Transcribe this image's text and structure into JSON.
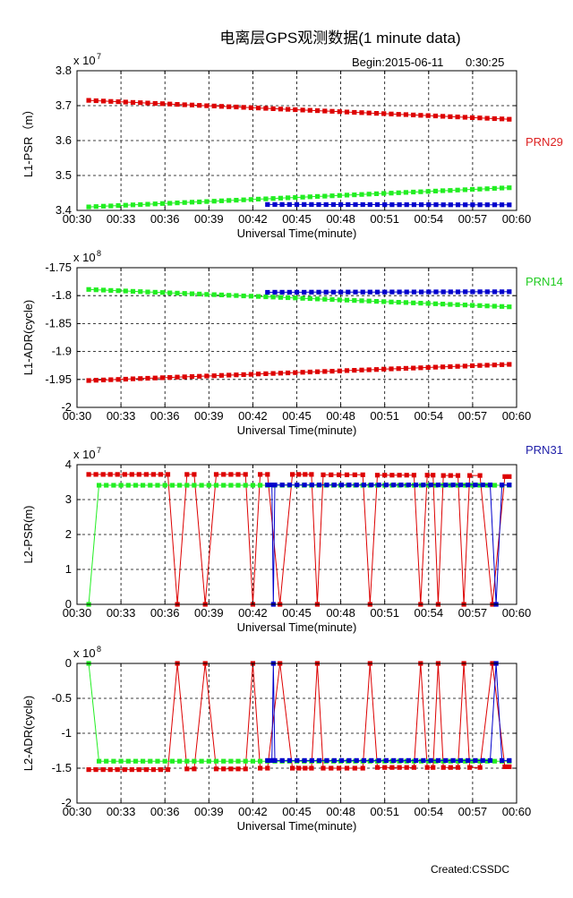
{
  "title": "电离层GPS观测数据(1 minute data)",
  "begin_label": "Begin:2015-06-11",
  "begin_time": "0:30:25",
  "credit": "Created:CSSDC",
  "colors": {
    "PRN29": "#dd0000",
    "PRN14": "#22ee22",
    "PRN31": "#0000cc"
  },
  "legend": [
    {
      "name": "PRN29",
      "color": "#dd2222"
    },
    {
      "name": "PRN14",
      "color": "#22cc22"
    },
    {
      "name": "PRN31",
      "color": "#2222aa"
    }
  ],
  "chart_data": [
    {
      "type": "line",
      "ylabel": "L1-PSR（m）",
      "xlabel": "Universal Time(minute)",
      "exponent": "x 10",
      "exponent_power": "7",
      "xlim": [
        30,
        60
      ],
      "ylim": [
        3.4,
        3.8
      ],
      "xticks": [
        "00:30",
        "00:33",
        "00:36",
        "00:39",
        "00:42",
        "00:45",
        "00:48",
        "00:51",
        "00:54",
        "00:57",
        "00:60"
      ],
      "yticks": [
        "3.8",
        "3.7",
        "3.6",
        "3.5",
        "3.4"
      ],
      "grid": true,
      "series": [
        {
          "name": "PRN29",
          "segments": [
            {
              "x_start": 30.8,
              "x_end": 59.5,
              "y_start": 3.715,
              "y_end": 3.661,
              "value": null
            }
          ]
        },
        {
          "name": "PRN14",
          "segments": [
            {
              "x_start": 30.8,
              "x_end": 59.5,
              "y_start": 3.41,
              "y_end": 3.465,
              "value": null
            }
          ]
        },
        {
          "name": "PRN31",
          "segments": [
            {
              "x_start": 43.0,
              "x_end": 59.5,
              "y_start": 3.417,
              "y_end": 3.416,
              "value": null
            }
          ]
        }
      ]
    },
    {
      "type": "line",
      "ylabel": "L1-ADR(cycle)",
      "xlabel": "Universal Time(minute)",
      "exponent": "x 10",
      "exponent_power": "8",
      "xlim": [
        30,
        60
      ],
      "ylim": [
        -2.0,
        -1.75
      ],
      "xticks": [
        "00:30",
        "00:33",
        "00:36",
        "00:39",
        "00:42",
        "00:45",
        "00:48",
        "00:51",
        "00:54",
        "00:57",
        "00:60"
      ],
      "yticks": [
        "-1.75",
        "-1.8",
        "-1.85",
        "-1.9",
        "-1.95",
        "-2"
      ],
      "grid": true,
      "series": [
        {
          "name": "PRN29",
          "segments": [
            {
              "x_start": 30.8,
              "x_end": 59.5,
              "y_start": -1.952,
              "y_end": -1.923,
              "value": null
            }
          ]
        },
        {
          "name": "PRN14",
          "segments": [
            {
              "x_start": 30.8,
              "x_end": 59.5,
              "y_start": -1.789,
              "y_end": -1.82,
              "value": null
            }
          ]
        },
        {
          "name": "PRN31",
          "segments": [
            {
              "x_start": 43.0,
              "x_end": 59.5,
              "y_start": -1.794,
              "y_end": -1.793,
              "value": null
            }
          ]
        }
      ]
    },
    {
      "type": "line",
      "ylabel": "L2-PSR(m)",
      "xlabel": "Universal Time(minute)",
      "exponent": "x 10",
      "exponent_power": "7",
      "xlim": [
        30,
        60
      ],
      "ylim": [
        0,
        4
      ],
      "xticks": [
        "00:30",
        "00:33",
        "00:36",
        "00:39",
        "00:42",
        "00:45",
        "00:48",
        "00:51",
        "00:54",
        "00:57",
        "00:60"
      ],
      "yticks": [
        "4",
        "3",
        "2",
        "1",
        "0"
      ],
      "grid": true,
      "series": [
        {
          "name": "PRN29",
          "dropouts_y": 0,
          "segments": [
            {
              "x_start": 30.8,
              "x_end": 36.2,
              "value": 3.72
            },
            {
              "x_start": 37.5,
              "x_end": 38.0,
              "value": 3.72
            },
            {
              "x_start": 39.5,
              "x_end": 41.5,
              "value": 3.72
            },
            {
              "x_start": 42.5,
              "x_end": 43.0,
              "value": 3.72
            },
            {
              "x_start": 44.7,
              "x_end": 46.0,
              "value": 3.72
            },
            {
              "x_start": 46.8,
              "x_end": 49.5,
              "value": 3.71
            },
            {
              "x_start": 50.5,
              "x_end": 53.0,
              "value": 3.7
            },
            {
              "x_start": 53.9,
              "x_end": 54.3,
              "value": 3.7
            },
            {
              "x_start": 55.0,
              "x_end": 56.0,
              "value": 3.69
            },
            {
              "x_start": 56.8,
              "x_end": 57.5,
              "value": 3.69
            },
            {
              "x_start": 59.2,
              "x_end": 59.5,
              "value": 3.66
            }
          ]
        },
        {
          "name": "PRN14",
          "lead_in": {
            "x": 30.8,
            "value": 0
          },
          "segments": [
            {
              "x_start": 31.5,
              "x_end": 59.5,
              "value": 3.41
            }
          ]
        },
        {
          "name": "PRN31",
          "dropouts_y": 0,
          "segments": [
            {
              "x_start": 43.0,
              "x_end": 43.3,
              "value": 3.42
            },
            {
              "x_start": 43.5,
              "x_end": 58.2,
              "value": 3.42
            },
            {
              "x_start": 59.0,
              "x_end": 59.5,
              "value": 3.42
            }
          ]
        }
      ]
    },
    {
      "type": "line",
      "ylabel": "L2-ADR(cycle)",
      "xlabel": "Universal Time(minute)",
      "exponent": "x 10",
      "exponent_power": "8",
      "xlim": [
        30,
        60
      ],
      "ylim": [
        -2,
        0
      ],
      "xticks": [
        "00:30",
        "00:33",
        "00:36",
        "00:39",
        "00:42",
        "00:45",
        "00:48",
        "00:51",
        "00:54",
        "00:57",
        "00:60"
      ],
      "yticks": [
        "0",
        "-0.5",
        "-1",
        "-1.5",
        "-2"
      ],
      "grid": true,
      "series": [
        {
          "name": "PRN29",
          "dropouts_y": 0,
          "segments": [
            {
              "x_start": 30.8,
              "x_end": 36.2,
              "value": -1.52
            },
            {
              "x_start": 37.5,
              "x_end": 38.0,
              "value": -1.51
            },
            {
              "x_start": 39.5,
              "x_end": 41.5,
              "value": -1.51
            },
            {
              "x_start": 42.5,
              "x_end": 43.0,
              "value": -1.5
            },
            {
              "x_start": 44.7,
              "x_end": 46.0,
              "value": -1.5
            },
            {
              "x_start": 46.8,
              "x_end": 49.5,
              "value": -1.5
            },
            {
              "x_start": 50.5,
              "x_end": 53.0,
              "value": -1.49
            },
            {
              "x_start": 53.9,
              "x_end": 54.3,
              "value": -1.49
            },
            {
              "x_start": 55.0,
              "x_end": 56.0,
              "value": -1.49
            },
            {
              "x_start": 56.8,
              "x_end": 57.5,
              "value": -1.49
            },
            {
              "x_start": 59.2,
              "x_end": 59.5,
              "value": -1.48
            }
          ]
        },
        {
          "name": "PRN14",
          "lead_in": {
            "x": 30.8,
            "value": 0
          },
          "segments": [
            {
              "x_start": 31.5,
              "x_end": 59.5,
              "value": -1.4
            }
          ]
        },
        {
          "name": "PRN31",
          "dropouts_y": 0,
          "segments": [
            {
              "x_start": 43.0,
              "x_end": 43.3,
              "value": -1.39
            },
            {
              "x_start": 43.5,
              "x_end": 58.2,
              "value": -1.39
            },
            {
              "x_start": 59.0,
              "x_end": 59.5,
              "value": -1.39
            }
          ]
        }
      ]
    }
  ]
}
